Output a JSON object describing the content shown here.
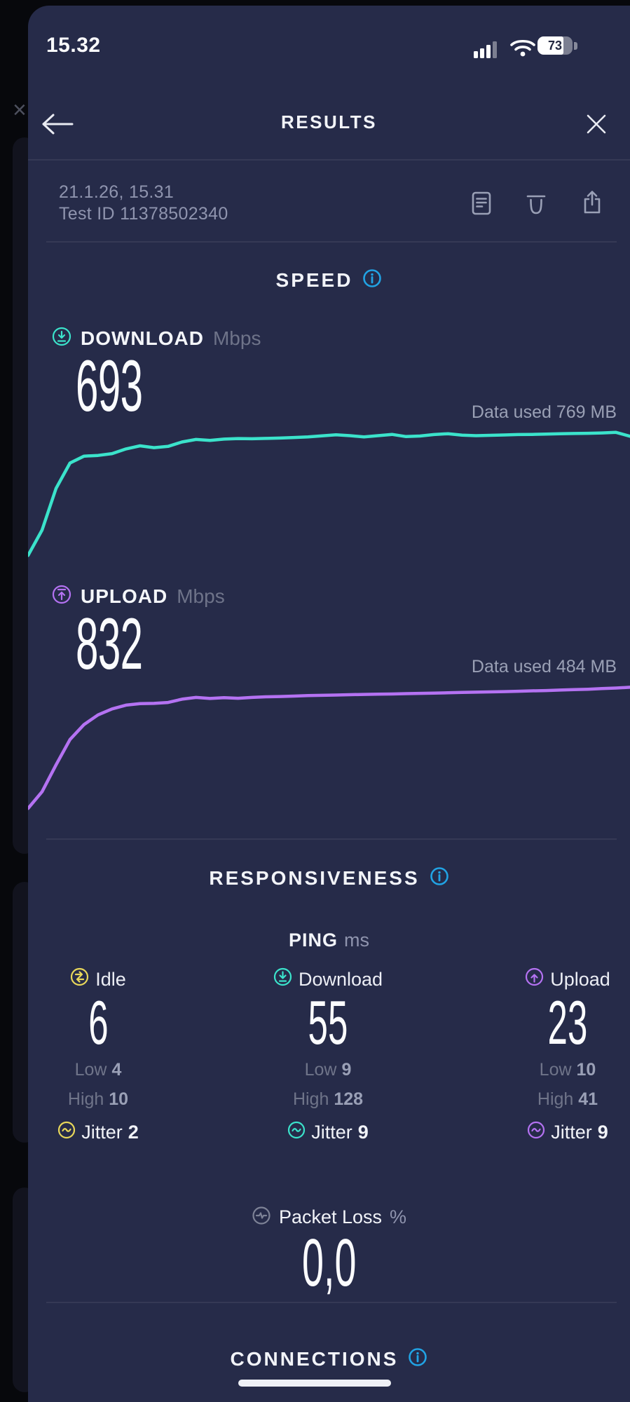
{
  "colors": {
    "card_background": "#262b49",
    "page_background": "#07080c",
    "accent_download": "#3be3cb",
    "accent_upload": "#b472f2",
    "accent_info": "#21a3e4",
    "accent_idle": "#e8d75a",
    "accent_packet_loss": "#7d8296",
    "text_muted": "#8f94ae",
    "text_value_muted": "#9aa0b6"
  },
  "status_bar": {
    "time": "15.32",
    "battery": "73"
  },
  "header": {
    "title": "RESULTS"
  },
  "test_info": {
    "date": "21.1.26, 15.31",
    "id": "Test ID 11378502340"
  },
  "speed": {
    "title": "SPEED",
    "download": {
      "label": "DOWNLOAD",
      "unit": "Mbps",
      "value": "693",
      "data_used": "Data used 769 MB"
    },
    "upload": {
      "label": "UPLOAD",
      "unit": "Mbps",
      "value": "832",
      "data_used": "Data used 484 MB"
    }
  },
  "responsiveness": {
    "title": "RESPONSIVENESS",
    "ping_label": "PING",
    "ping_unit": "ms",
    "columns": [
      {
        "label": "Idle",
        "value": "6",
        "low_label": "Low",
        "low": "4",
        "high_label": "High",
        "high": "10",
        "jitter_label": "Jitter",
        "jitter": "2"
      },
      {
        "label": "Download",
        "value": "55",
        "low_label": "Low",
        "low": "9",
        "high_label": "High",
        "high": "128",
        "jitter_label": "Jitter",
        "jitter": "9"
      },
      {
        "label": "Upload",
        "value": "23",
        "low_label": "Low",
        "low": "10",
        "high_label": "High",
        "high": "41",
        "jitter_label": "Jitter",
        "jitter": "9"
      }
    ],
    "packet_loss": {
      "label": "Packet Loss",
      "unit": "%",
      "value": "0,0"
    }
  },
  "connections": {
    "title": "CONNECTIONS"
  },
  "chart_data": [
    {
      "type": "line",
      "name": "download-speed",
      "title": "Download speed over test duration",
      "ylabel": "Mbps",
      "ylim": [
        0,
        700
      ],
      "final_value": 693,
      "color": "#3be3cb",
      "grid": false,
      "legend": "none",
      "values": [
        10,
        150,
        380,
        520,
        558,
        562,
        572,
        598,
        615,
        605,
        612,
        636,
        650,
        645,
        652,
        655,
        654,
        656,
        658,
        661,
        664,
        670,
        676,
        671,
        664,
        671,
        678,
        666,
        669,
        677,
        682,
        674,
        671,
        673,
        675,
        677,
        678,
        680,
        682,
        683,
        684,
        686,
        689,
        668
      ]
    },
    {
      "type": "line",
      "name": "upload-speed",
      "title": "Upload speed over test duration",
      "ylabel": "Mbps",
      "ylim": [
        0,
        850
      ],
      "final_value": 832,
      "color": "#b472f2",
      "grid": false,
      "legend": "none",
      "values": [
        8,
        120,
        300,
        470,
        570,
        635,
        675,
        700,
        710,
        712,
        718,
        740,
        752,
        745,
        750,
        746,
        752,
        756,
        758,
        761,
        764,
        766,
        768,
        770,
        772,
        774,
        775,
        777,
        779,
        781,
        783,
        785,
        787,
        789,
        791,
        793,
        796,
        798,
        801,
        804,
        807,
        811,
        815,
        820
      ]
    }
  ]
}
